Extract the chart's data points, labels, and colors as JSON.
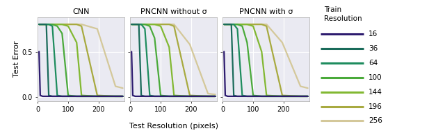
{
  "subplot_titles": [
    "CNN",
    "PNCNN without σ",
    "PNCNN with σ"
  ],
  "legend_title": "Train\nResolution",
  "xlabel": "Test Resolution (pixels)",
  "ylabel": "Test Error",
  "train_resolutions": [
    "16",
    "36",
    "64",
    "100",
    "144",
    "196",
    "256"
  ],
  "colors": {
    "16": "#2d1b6e",
    "36": "#1a6b5a",
    "64": "#1e8c5e",
    "100": "#4aaa3a",
    "144": "#82b832",
    "196": "#a8aa40",
    "256": "#d4c89a"
  },
  "background_color": "#eaeaf2",
  "grid_color": "white",
  "ylim": [
    -0.04,
    0.88
  ],
  "xlim": [
    0,
    285
  ],
  "x": [
    4,
    8,
    16,
    28,
    36,
    48,
    64,
    80,
    100,
    128,
    144,
    196,
    256,
    280
  ],
  "cnn_data": {
    "16": [
      0.5,
      0.02,
      0.01,
      0.01,
      0.01,
      0.01,
      0.01,
      0.01,
      0.01,
      0.01,
      0.01,
      0.01,
      0.01,
      0.01
    ],
    "36": [
      0.8,
      0.8,
      0.8,
      0.8,
      0.02,
      0.01,
      0.01,
      0.01,
      0.01,
      0.01,
      0.01,
      0.01,
      0.01,
      0.01
    ],
    "64": [
      0.8,
      0.8,
      0.8,
      0.8,
      0.8,
      0.78,
      0.02,
      0.01,
      0.01,
      0.01,
      0.01,
      0.01,
      0.01,
      0.01
    ],
    "100": [
      0.8,
      0.8,
      0.8,
      0.8,
      0.8,
      0.8,
      0.78,
      0.7,
      0.02,
      0.01,
      0.01,
      0.01,
      0.01,
      0.01
    ],
    "144": [
      0.8,
      0.8,
      0.8,
      0.8,
      0.8,
      0.8,
      0.8,
      0.8,
      0.78,
      0.6,
      0.02,
      0.01,
      0.01,
      0.01
    ],
    "196": [
      0.8,
      0.8,
      0.8,
      0.8,
      0.8,
      0.8,
      0.8,
      0.8,
      0.8,
      0.8,
      0.78,
      0.02,
      0.01,
      0.01
    ],
    "256": [
      0.8,
      0.8,
      0.8,
      0.8,
      0.8,
      0.8,
      0.8,
      0.8,
      0.8,
      0.8,
      0.8,
      0.75,
      0.12,
      0.1
    ]
  },
  "pncnn_no_sigma_data": {
    "16": [
      0.5,
      0.02,
      0.01,
      0.01,
      0.01,
      0.01,
      0.01,
      0.01,
      0.01,
      0.01,
      0.01,
      0.01,
      0.01,
      0.01
    ],
    "36": [
      0.8,
      0.8,
      0.8,
      0.8,
      0.02,
      0.01,
      0.01,
      0.01,
      0.01,
      0.01,
      0.01,
      0.01,
      0.01,
      0.01
    ],
    "64": [
      0.8,
      0.8,
      0.8,
      0.8,
      0.8,
      0.75,
      0.02,
      0.01,
      0.01,
      0.01,
      0.01,
      0.01,
      0.01,
      0.01
    ],
    "100": [
      0.8,
      0.8,
      0.8,
      0.8,
      0.8,
      0.8,
      0.78,
      0.65,
      0.02,
      0.01,
      0.01,
      0.01,
      0.01,
      0.01
    ],
    "144": [
      0.8,
      0.8,
      0.8,
      0.8,
      0.8,
      0.8,
      0.8,
      0.8,
      0.78,
      0.55,
      0.02,
      0.01,
      0.01,
      0.01
    ],
    "196": [
      0.8,
      0.8,
      0.8,
      0.8,
      0.8,
      0.8,
      0.8,
      0.8,
      0.8,
      0.8,
      0.78,
      0.02,
      0.01,
      0.01
    ],
    "256": [
      0.8,
      0.8,
      0.8,
      0.8,
      0.8,
      0.8,
      0.8,
      0.8,
      0.8,
      0.8,
      0.8,
      0.58,
      0.04,
      0.03
    ]
  },
  "pncnn_sigma_data": {
    "16": [
      0.5,
      0.02,
      0.01,
      0.01,
      0.01,
      0.01,
      0.01,
      0.01,
      0.01,
      0.01,
      0.01,
      0.01,
      0.01,
      0.01
    ],
    "36": [
      0.8,
      0.8,
      0.8,
      0.8,
      0.02,
      0.01,
      0.01,
      0.01,
      0.01,
      0.01,
      0.01,
      0.01,
      0.01,
      0.01
    ],
    "64": [
      0.8,
      0.8,
      0.8,
      0.8,
      0.8,
      0.75,
      0.02,
      0.01,
      0.01,
      0.01,
      0.01,
      0.01,
      0.01,
      0.01
    ],
    "100": [
      0.8,
      0.8,
      0.8,
      0.8,
      0.8,
      0.8,
      0.78,
      0.6,
      0.02,
      0.01,
      0.01,
      0.01,
      0.01,
      0.01
    ],
    "144": [
      0.8,
      0.8,
      0.8,
      0.8,
      0.8,
      0.8,
      0.8,
      0.8,
      0.78,
      0.5,
      0.02,
      0.01,
      0.01,
      0.01
    ],
    "196": [
      0.8,
      0.8,
      0.8,
      0.8,
      0.8,
      0.8,
      0.8,
      0.8,
      0.8,
      0.8,
      0.78,
      0.02,
      0.01,
      0.01
    ],
    "256": [
      0.8,
      0.8,
      0.8,
      0.8,
      0.8,
      0.8,
      0.8,
      0.8,
      0.8,
      0.8,
      0.8,
      0.6,
      0.12,
      0.1
    ]
  },
  "linewidth": 1.6
}
